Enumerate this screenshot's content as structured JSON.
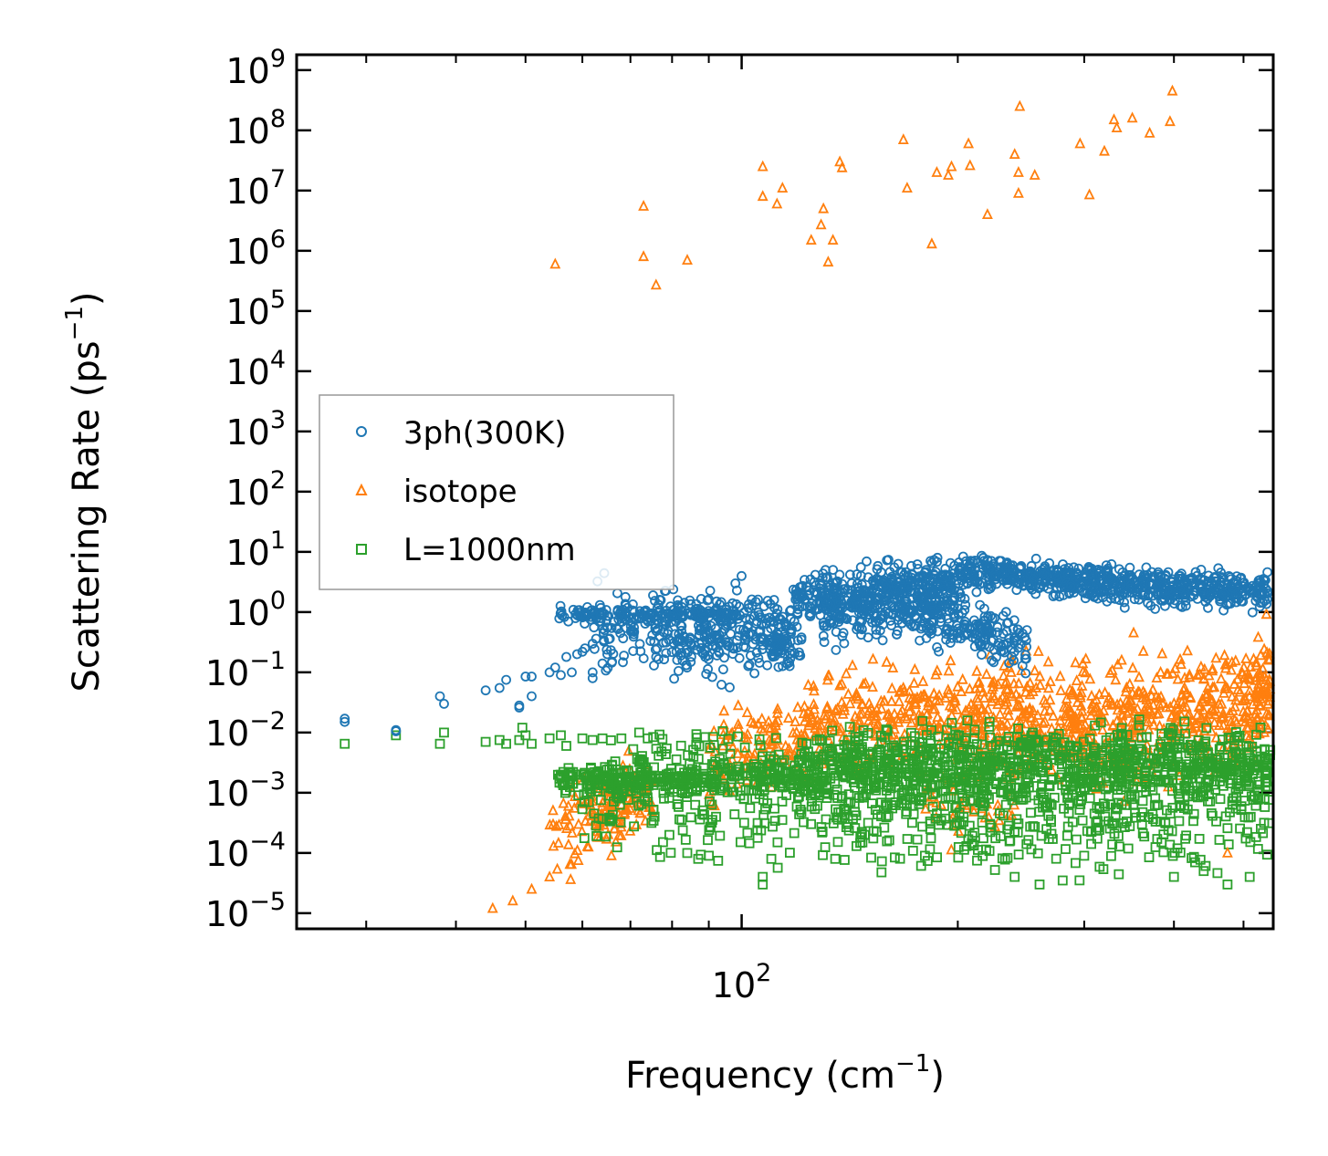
{
  "chart_data": {
    "type": "scatter",
    "xscale": "log",
    "yscale": "log",
    "xlabel": "Frequency (cm",
    "xlabel_sup": "−1",
    "xlabel_end": ")",
    "ylabel": "Scattering Rate (ps",
    "ylabel_sup": "−1",
    "ylabel_end": ")",
    "xlim": [
      24,
      550
    ],
    "ylim": [
      5.5e-06,
      1800000000
    ],
    "x_major_ticks": [
      {
        "value": 100,
        "base": "10",
        "exp": "2"
      }
    ],
    "x_minor_ticks": [
      30,
      40,
      50,
      60,
      70,
      80,
      90,
      200,
      300,
      400,
      500
    ],
    "y_ticks": [
      {
        "exp": -5,
        "base": "10",
        "label": "−5"
      },
      {
        "exp": -4,
        "base": "10",
        "label": "−4"
      },
      {
        "exp": -3,
        "base": "10",
        "label": "−3"
      },
      {
        "exp": -2,
        "base": "10",
        "label": "−2"
      },
      {
        "exp": -1,
        "base": "10",
        "label": "−1"
      },
      {
        "exp": 0,
        "base": "10",
        "label": "0"
      },
      {
        "exp": 1,
        "base": "10",
        "label": "1"
      },
      {
        "exp": 2,
        "base": "10",
        "label": "2"
      },
      {
        "exp": 3,
        "base": "10",
        "label": "3"
      },
      {
        "exp": 4,
        "base": "10",
        "label": "4"
      },
      {
        "exp": 5,
        "base": "10",
        "label": "5"
      },
      {
        "exp": 6,
        "base": "10",
        "label": "6"
      },
      {
        "exp": 7,
        "base": "10",
        "label": "7"
      },
      {
        "exp": 8,
        "base": "10",
        "label": "8"
      },
      {
        "exp": 9,
        "base": "10",
        "label": "9"
      }
    ],
    "legend_position": "center-left",
    "series": [
      {
        "name": "3ph(300K)",
        "marker": "circle",
        "color": "#1f77b4",
        "points": [
          [
            28,
            0.017
          ],
          [
            28,
            0.015
          ],
          [
            33,
            0.011
          ],
          [
            33,
            0.0105
          ],
          [
            38,
            0.04
          ],
          [
            38.5,
            0.03
          ],
          [
            44,
            0.05
          ],
          [
            46,
            0.055
          ],
          [
            47,
            0.075
          ],
          [
            49,
            0.026
          ],
          [
            49,
            0.028
          ],
          [
            50,
            0.085
          ],
          [
            51,
            0.04
          ],
          [
            51,
            0.085
          ],
          [
            54,
            0.1
          ],
          [
            55,
            0.12
          ],
          [
            56,
            0.09
          ],
          [
            57,
            0.18
          ],
          [
            58,
            0.1
          ],
          [
            59,
            0.2
          ],
          [
            60,
            0.22
          ],
          [
            60.5,
            0.25
          ],
          [
            62,
            0.08
          ],
          [
            62,
            0.1
          ],
          [
            64,
            0.14
          ],
          [
            65,
            0.2
          ],
          [
            66,
            0.15
          ],
          [
            98,
            3.0
          ]
        ],
        "bands": [
          {
            "x": [
              55,
              100
            ],
            "y_center": [
              0.95,
              0.9
            ],
            "spread": 0.06,
            "n": 160
          },
          {
            "x": [
              62,
              118
            ],
            "y_center": [
              0.6,
              0.45
            ],
            "spread": 0.3,
            "n": 200
          },
          {
            "x": [
              75,
              118
            ],
            "y_center": [
              0.35,
              0.5
            ],
            "spread": 0.35,
            "n": 160
          },
          {
            "x": [
              110,
              122
            ],
            "y_center": [
              0.22,
              0.3
            ],
            "spread": 0.15,
            "n": 40
          },
          {
            "x": [
              118,
              220
            ],
            "y_center": [
              1.5,
              4.5
            ],
            "spread": 0.2,
            "n": 380
          },
          {
            "x": [
              130,
              200
            ],
            "y_center": [
              0.9,
              1.6
            ],
            "spread": 0.25,
            "n": 240
          },
          {
            "x": [
              180,
              250
            ],
            "y_center": [
              1.0,
              0.25
            ],
            "spread": 0.22,
            "n": 160
          },
          {
            "x": [
              220,
              300
            ],
            "y_center": [
              4.5,
              3.0
            ],
            "spread": 0.12,
            "n": 220
          },
          {
            "x": [
              300,
              540
            ],
            "y_center": [
              3.0,
              2.2
            ],
            "spread": 0.15,
            "n": 420
          }
        ]
      },
      {
        "name": "isotope",
        "marker": "triangle",
        "color": "#ff7f0e",
        "points": [
          [
            55,
            600000
          ],
          [
            73,
            5500000
          ],
          [
            73,
            800000
          ],
          [
            76,
            270000
          ],
          [
            84,
            700000
          ],
          [
            107,
            25000000
          ],
          [
            107,
            8000000
          ],
          [
            112,
            6000000
          ],
          [
            114,
            11000000
          ],
          [
            125,
            1500000
          ],
          [
            129,
            2700000
          ],
          [
            130,
            5000000
          ],
          [
            132,
            650000
          ],
          [
            134,
            1500000
          ],
          [
            137,
            30000000
          ],
          [
            138,
            24000000
          ],
          [
            168,
            70000000
          ],
          [
            170,
            11000000
          ],
          [
            184,
            1300000
          ],
          [
            187,
            20000000
          ],
          [
            194,
            18000000
          ],
          [
            196,
            25000000
          ],
          [
            207,
            60000000
          ],
          [
            208,
            26000000
          ],
          [
            220,
            4000000
          ],
          [
            240,
            40000000
          ],
          [
            243,
            20000000
          ],
          [
            243,
            9000000
          ],
          [
            244,
            250000000
          ],
          [
            256,
            18000000
          ],
          [
            296,
            60000000
          ],
          [
            305,
            8500000
          ],
          [
            320,
            45000000
          ],
          [
            330,
            150000000
          ],
          [
            333,
            110000000
          ],
          [
            350,
            160000000
          ],
          [
            370,
            90000000
          ],
          [
            395,
            140000000
          ],
          [
            398,
            450000000
          ],
          [
            45,
            1.2e-05
          ],
          [
            48,
            1.6e-05
          ],
          [
            51,
            2.5e-05
          ],
          [
            54,
            4e-05
          ],
          [
            137,
            0.06
          ],
          [
            475,
            0.0001
          ]
        ],
        "bands": [
          {
            "x": [
              54,
              70
            ],
            "y_center": [
              0.00015,
              0.0008
            ],
            "spread": 0.35,
            "n": 90
          },
          {
            "x": [
              63,
              75
            ],
            "y_center": [
              0.0006,
              0.0009
            ],
            "spread": 0.25,
            "n": 60
          },
          {
            "x": [
              90,
              125
            ],
            "y_center": [
              0.0035,
              0.012
            ],
            "spread": 0.35,
            "n": 120
          },
          {
            "x": [
              125,
              220
            ],
            "y_center": [
              0.012,
              0.02
            ],
            "spread": 0.4,
            "n": 300
          },
          {
            "x": [
              220,
              300
            ],
            "y_center": [
              0.015,
              0.02
            ],
            "spread": 0.45,
            "n": 220
          },
          {
            "x": [
              300,
              520
            ],
            "y_center": [
              0.012,
              0.03
            ],
            "spread": 0.5,
            "n": 380
          },
          {
            "x": [
              520,
              545
            ],
            "y_center": [
              0.03,
              0.1
            ],
            "spread": 0.4,
            "n": 60
          },
          {
            "x": [
              180,
              240
            ],
            "y_center": [
              0.0007,
              0.0005
            ],
            "spread": 0.3,
            "n": 40
          }
        ]
      },
      {
        "name": "L=1000nm",
        "marker": "square",
        "color": "#2ca02c",
        "points": [
          [
            28,
            0.0065
          ],
          [
            33,
            0.009
          ],
          [
            38,
            0.0065
          ],
          [
            38.5,
            0.01
          ],
          [
            44,
            0.007
          ],
          [
            46,
            0.0075
          ],
          [
            47,
            0.0065
          ],
          [
            49,
            0.0075
          ],
          [
            49.5,
            0.012
          ],
          [
            50,
            0.009
          ],
          [
            51,
            0.0065
          ],
          [
            54,
            0.008
          ],
          [
            56,
            0.009
          ],
          [
            57,
            0.006
          ],
          [
            60,
            0.008
          ],
          [
            62,
            0.0075
          ],
          [
            64,
            0.008
          ],
          [
            68,
            0.008
          ],
          [
            72,
            0.01
          ],
          [
            74,
            0.008
          ],
          [
            84,
            0.0001
          ],
          [
            87,
            8e-05
          ],
          [
            90,
            9e-05
          ],
          [
            107,
            4e-05
          ],
          [
            107,
            3e-05
          ],
          [
            110,
            8e-05
          ],
          [
            135,
            8e-05
          ],
          [
            180,
            9e-05
          ],
          [
            240,
            4e-05
          ],
          [
            260,
            3e-05
          ],
          [
            280,
            3.5e-05
          ],
          [
            300,
            9e-05
          ],
          [
            400,
            4e-05
          ],
          [
            440,
            5e-05
          ],
          [
            475,
            3e-05
          ],
          [
            510,
            4e-05
          ]
        ],
        "bands": [
          {
            "x": [
              55,
              120
            ],
            "y_center": [
              0.0015,
              0.0018
            ],
            "spread": 0.12,
            "n": 320
          },
          {
            "x": [
              60,
              120
            ],
            "y_center": [
              0.0006,
              0.0004
            ],
            "spread": 0.35,
            "n": 120
          },
          {
            "x": [
              65,
              120
            ],
            "y_center": [
              0.004,
              0.003
            ],
            "spread": 0.25,
            "n": 80
          },
          {
            "x": [
              120,
              545
            ],
            "y_center": [
              0.0018,
              0.0025
            ],
            "spread": 0.3,
            "n": 900
          },
          {
            "x": [
              120,
              545
            ],
            "y_center": [
              0.0003,
              0.0003
            ],
            "spread": 0.35,
            "n": 300
          },
          {
            "x": [
              120,
              545
            ],
            "y_center": [
              0.005,
              0.005
            ],
            "spread": 0.2,
            "n": 250
          }
        ]
      }
    ]
  }
}
